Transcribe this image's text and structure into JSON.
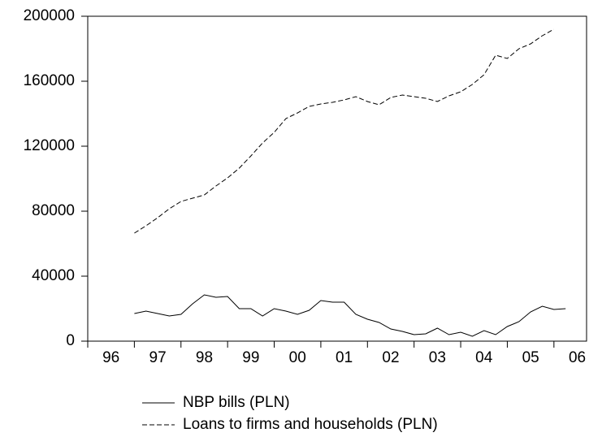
{
  "chart_data": {
    "type": "line",
    "x": [
      1997,
      1997.25,
      1997.5,
      1997.75,
      1998,
      1998.25,
      1998.5,
      1998.75,
      1999,
      1999.25,
      1999.5,
      1999.75,
      2000,
      2000.25,
      2000.5,
      2000.75,
      2001,
      2001.25,
      2001.5,
      2001.75,
      2002,
      2002.25,
      2002.5,
      2002.75,
      2003,
      2003.25,
      2003.5,
      2003.75,
      2004,
      2004.25,
      2004.5,
      2004.75,
      2005,
      2005.25,
      2005.5,
      2005.75,
      2006,
      2006.25
    ],
    "series": [
      {
        "name": "NBP bills (PLN)",
        "color": "#000000",
        "dash": "none",
        "values": [
          17000,
          18500,
          17000,
          15500,
          16500,
          23000,
          28500,
          27000,
          27500,
          20000,
          20000,
          15500,
          20000,
          18500,
          16500,
          19000,
          25000,
          24000,
          24000,
          16500,
          13500,
          11500,
          7500,
          6000,
          4000,
          4500,
          8000,
          4000,
          5500,
          3000,
          6500,
          4000,
          9000,
          12000,
          18000,
          21500,
          19500,
          20000
        ]
      },
      {
        "name": "Loans to firms and households (PLN)",
        "color": "#000000",
        "dash": "6,3",
        "values": [
          66500,
          71000,
          76000,
          81500,
          86000,
          88000,
          90000,
          95500,
          100500,
          106500,
          114000,
          122000,
          128500,
          137000,
          140500,
          144500,
          146000,
          147000,
          148500,
          150500,
          147500,
          145500,
          150000,
          151500,
          150500,
          149500,
          147500,
          151000,
          153500,
          158000,
          164000,
          176000,
          174000,
          180000,
          183000,
          188000,
          192000,
          null
        ]
      }
    ],
    "xlim": [
      1996,
      2006.7
    ],
    "xticks": [
      {
        "value": 1996,
        "label": "96"
      },
      {
        "value": 1997,
        "label": "97"
      },
      {
        "value": 1998,
        "label": "98"
      },
      {
        "value": 1999,
        "label": "99"
      },
      {
        "value": 2000,
        "label": "00"
      },
      {
        "value": 2001,
        "label": "01"
      },
      {
        "value": 2002,
        "label": "02"
      },
      {
        "value": 2003,
        "label": "03"
      },
      {
        "value": 2004,
        "label": "04"
      },
      {
        "value": 2005,
        "label": "05"
      },
      {
        "value": 2006,
        "label": "06"
      }
    ],
    "ylim": [
      0,
      200000
    ],
    "yticks": [
      0,
      40000,
      80000,
      120000,
      160000,
      200000
    ],
    "grid": false,
    "legend": "bottom"
  }
}
